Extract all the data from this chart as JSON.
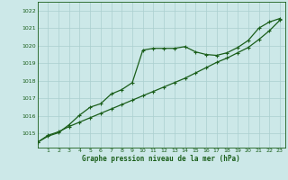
{
  "xlabel": "Graphe pression niveau de la mer (hPa)",
  "bg_color": "#cce8e8",
  "line_color": "#1a5e1a",
  "grid_color": "#aacfcf",
  "x_ticks": [
    1,
    2,
    3,
    4,
    5,
    6,
    7,
    8,
    9,
    10,
    11,
    12,
    13,
    14,
    15,
    16,
    17,
    18,
    19,
    20,
    21,
    22,
    23
  ],
  "y_ticks": [
    1015,
    1016,
    1017,
    1018,
    1019,
    1020,
    1021,
    1022
  ],
  "ylim": [
    1014.2,
    1022.5
  ],
  "xlim": [
    0,
    23.5
  ],
  "series1_x": [
    0,
    1,
    2,
    3,
    4,
    5,
    6,
    7,
    8,
    9,
    10,
    11,
    12,
    13,
    14,
    15,
    16,
    17,
    18,
    19,
    20,
    21,
    22,
    23
  ],
  "series1_y": [
    1014.5,
    1014.85,
    1015.05,
    1015.5,
    1016.05,
    1016.5,
    1016.7,
    1017.25,
    1017.5,
    1017.9,
    1019.75,
    1019.85,
    1019.85,
    1019.85,
    1019.95,
    1019.65,
    1019.5,
    1019.45,
    1019.6,
    1019.9,
    1020.3,
    1021.0,
    1021.35,
    1021.55
  ],
  "series2_x": [
    0,
    1,
    2,
    3,
    4,
    5,
    6,
    7,
    8,
    9,
    10,
    11,
    12,
    13,
    14,
    15,
    16,
    17,
    18,
    19,
    20,
    21,
    22,
    23
  ],
  "series2_y": [
    1014.5,
    1014.9,
    1015.1,
    1015.4,
    1015.65,
    1015.9,
    1016.15,
    1016.4,
    1016.65,
    1016.9,
    1017.15,
    1017.4,
    1017.65,
    1017.9,
    1018.15,
    1018.45,
    1018.75,
    1019.05,
    1019.3,
    1019.6,
    1019.9,
    1020.35,
    1020.85,
    1021.45
  ]
}
